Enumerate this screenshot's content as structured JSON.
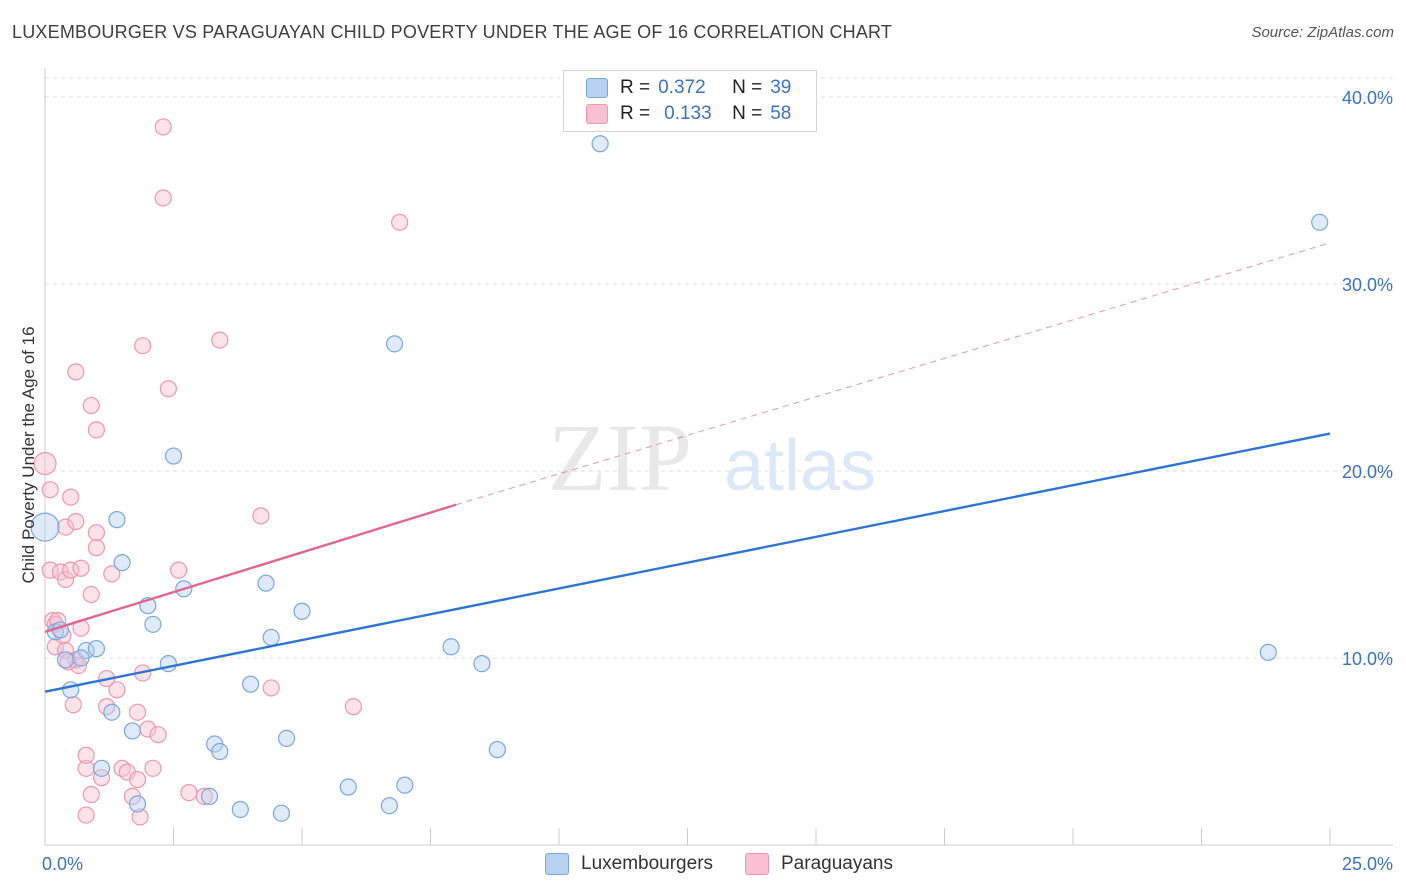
{
  "header": {
    "title": "LUXEMBOURGER VS PARAGUAYAN CHILD POVERTY UNDER THE AGE OF 16 CORRELATION CHART",
    "source": "Source: ZipAtlas.com"
  },
  "legend": {
    "rows": [
      {
        "r_label": "R =",
        "r_value": "0.372",
        "n_label": "N =",
        "n_value": "39"
      },
      {
        "r_label": "R =",
        "r_value": "0.133",
        "n_label": "N =",
        "n_value": "58"
      }
    ],
    "bottom": [
      "Luxembourgers",
      "Paraguayans"
    ]
  },
  "watermark": {
    "zip": "ZIP",
    "atlas": "atlas"
  },
  "colors": {
    "lux_fill": "#b8d0f2",
    "lux_stroke": "#7aa6e0",
    "lux_line": "#2f74cf",
    "par_fill": "#f8c0d0",
    "par_stroke": "#ee96b0",
    "par_line": "#e06890",
    "grid": "#dddddd",
    "tick_label": "#3a72c4"
  },
  "chart_data": {
    "type": "scatter",
    "title": "LUXEMBOURGER VS PARAGUAYAN CHILD POVERTY UNDER THE AGE OF 16 CORRELATION CHART",
    "xlabel": "",
    "ylabel": "Child Poverty Under the Age of 16",
    "xlim": [
      0,
      25
    ],
    "ylim": [
      0,
      41
    ],
    "x_tick_labels": [
      {
        "v": 0,
        "label": "0.0%"
      },
      {
        "v": 25,
        "label": "25.0%"
      }
    ],
    "y_tick_labels": [
      {
        "v": 10,
        "label": "10.0%"
      },
      {
        "v": 20,
        "label": "20.0%"
      },
      {
        "v": 30,
        "label": "30.0%"
      },
      {
        "v": 40,
        "label": "40.0%"
      }
    ],
    "x_minor_ticks": [
      2.5,
      5,
      7.5,
      10,
      12.5,
      15,
      17.5,
      20,
      22.5,
      25
    ],
    "series": [
      {
        "name": "Luxembourgers",
        "r": 0.372,
        "n": 39,
        "trend": {
          "x0": 0,
          "y0": 8.2,
          "x1": 25,
          "y1": 22.0
        },
        "points": [
          [
            0.0,
            17.0,
            14
          ],
          [
            1.4,
            17.4,
            8
          ],
          [
            2.5,
            20.8,
            8
          ],
          [
            1.5,
            15.1,
            8
          ],
          [
            2.7,
            13.7,
            8
          ],
          [
            2.0,
            12.8,
            8
          ],
          [
            2.1,
            11.8,
            8
          ],
          [
            0.2,
            11.4,
            8
          ],
          [
            0.4,
            9.9,
            8
          ],
          [
            0.8,
            10.4,
            8
          ],
          [
            0.7,
            10.0,
            8
          ],
          [
            1.0,
            10.5,
            8
          ],
          [
            0.5,
            8.3,
            8
          ],
          [
            2.4,
            9.7,
            8
          ],
          [
            1.3,
            7.1,
            8
          ],
          [
            1.7,
            6.1,
            8
          ],
          [
            1.1,
            4.1,
            8
          ],
          [
            1.8,
            2.2,
            8
          ],
          [
            3.2,
            2.6,
            8
          ],
          [
            3.3,
            5.4,
            8
          ],
          [
            3.4,
            5.0,
            8
          ],
          [
            3.8,
            1.9,
            8
          ],
          [
            4.0,
            8.6,
            8
          ],
          [
            4.3,
            14.0,
            8
          ],
          [
            4.4,
            11.1,
            8
          ],
          [
            4.6,
            1.7,
            8
          ],
          [
            4.7,
            5.7,
            8
          ],
          [
            5.0,
            12.5,
            8
          ],
          [
            5.9,
            3.1,
            8
          ],
          [
            6.7,
            2.1,
            8
          ],
          [
            6.8,
            26.8,
            8
          ],
          [
            7.0,
            3.2,
            8
          ],
          [
            7.9,
            10.6,
            8
          ],
          [
            8.5,
            9.7,
            8
          ],
          [
            8.8,
            5.1,
            8
          ],
          [
            10.8,
            37.5,
            8
          ],
          [
            23.8,
            10.3,
            8
          ],
          [
            24.8,
            33.3,
            8
          ],
          [
            0.3,
            11.5,
            8
          ]
        ]
      },
      {
        "name": "Paraguayans",
        "r": 0.133,
        "n": 58,
        "trend": {
          "x0": 0,
          "y0": 11.4,
          "x1": 8.0,
          "y1": 18.2
        },
        "trend_extension": {
          "x0": 8.0,
          "y0": 18.2,
          "x1": 25,
          "y1": 32.2
        },
        "points": [
          [
            0.0,
            20.4,
            11
          ],
          [
            0.1,
            19.0,
            8
          ],
          [
            0.1,
            14.7,
            8
          ],
          [
            0.15,
            12.0,
            8
          ],
          [
            0.2,
            11.8,
            8
          ],
          [
            0.2,
            10.6,
            8
          ],
          [
            0.3,
            14.6,
            8
          ],
          [
            0.35,
            11.2,
            8
          ],
          [
            0.4,
            10.4,
            8
          ],
          [
            0.4,
            17.0,
            8
          ],
          [
            0.4,
            14.2,
            8
          ],
          [
            0.5,
            18.6,
            8
          ],
          [
            0.5,
            14.7,
            8
          ],
          [
            0.55,
            7.5,
            8
          ],
          [
            0.6,
            9.9,
            8
          ],
          [
            0.6,
            17.3,
            8
          ],
          [
            0.65,
            9.6,
            8
          ],
          [
            0.7,
            14.8,
            8
          ],
          [
            0.7,
            11.6,
            8
          ],
          [
            0.8,
            4.1,
            8
          ],
          [
            0.8,
            4.8,
            8
          ],
          [
            0.8,
            1.6,
            8
          ],
          [
            0.9,
            23.5,
            8
          ],
          [
            0.9,
            13.4,
            8
          ],
          [
            0.9,
            2.7,
            8
          ],
          [
            1.0,
            22.2,
            8
          ],
          [
            1.0,
            16.7,
            8
          ],
          [
            1.0,
            15.9,
            8
          ],
          [
            1.1,
            3.6,
            8
          ],
          [
            1.2,
            8.9,
            8
          ],
          [
            1.2,
            7.4,
            8
          ],
          [
            1.3,
            14.5,
            8
          ],
          [
            1.4,
            8.3,
            8
          ],
          [
            1.5,
            4.1,
            8
          ],
          [
            1.6,
            3.9,
            8
          ],
          [
            1.7,
            2.6,
            8
          ],
          [
            1.8,
            7.1,
            8
          ],
          [
            1.8,
            3.5,
            8
          ],
          [
            1.85,
            1.5,
            8
          ],
          [
            1.9,
            9.2,
            8
          ],
          [
            1.9,
            26.7,
            8
          ],
          [
            2.0,
            6.2,
            8
          ],
          [
            2.1,
            4.1,
            8
          ],
          [
            2.2,
            5.9,
            8
          ],
          [
            2.3,
            38.4,
            8
          ],
          [
            2.3,
            34.6,
            8
          ],
          [
            2.4,
            24.4,
            8
          ],
          [
            2.6,
            14.7,
            8
          ],
          [
            2.8,
            2.8,
            8
          ],
          [
            3.1,
            2.6,
            8
          ],
          [
            3.4,
            27.0,
            8
          ],
          [
            4.2,
            17.6,
            8
          ],
          [
            4.4,
            8.4,
            8
          ],
          [
            6.0,
            7.4,
            8
          ],
          [
            6.9,
            33.3,
            8
          ],
          [
            0.6,
            25.3,
            8
          ],
          [
            0.25,
            12.0,
            8
          ],
          [
            0.45,
            9.8,
            8
          ]
        ]
      }
    ]
  }
}
